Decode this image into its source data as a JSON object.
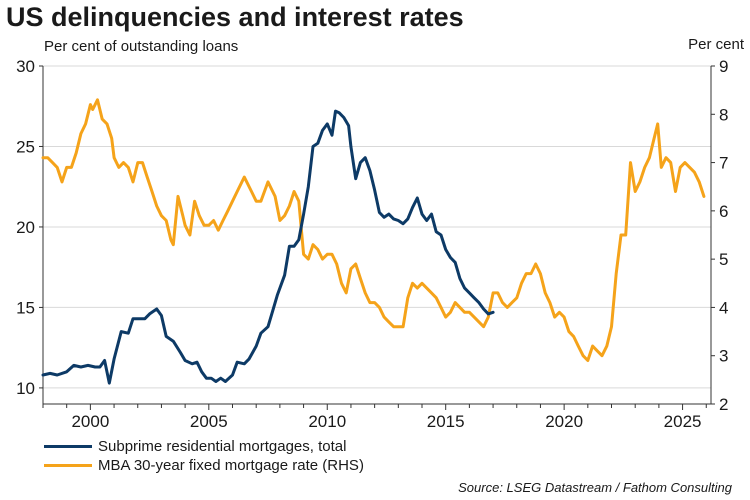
{
  "header": {
    "title": "US delinquencies and interest rates",
    "left_unit": "Per cent of outstanding loans",
    "right_unit": "Per cent"
  },
  "source": "Source: LSEG Datastream / Fathom Consulting",
  "colors": {
    "subprime": "#0d3a66",
    "mortgage_rate": "#f5a31a",
    "grid": "#d9d9d9",
    "axis": "#333333"
  },
  "chart_data": {
    "type": "line",
    "x_range": [
      1998,
      2026.2
    ],
    "x_ticks": [
      2000,
      2005,
      2010,
      2015,
      2020,
      2025
    ],
    "y_left": {
      "range": [
        9,
        30
      ],
      "ticks": [
        10,
        15,
        20,
        25,
        30
      ]
    },
    "y_right": {
      "range": [
        2,
        9
      ],
      "ticks": [
        2,
        3,
        4,
        5,
        6,
        7,
        8,
        9
      ]
    },
    "grid": true,
    "legend_position": "bottom-left",
    "series": [
      {
        "name": "Subprime residential mortgages, total",
        "axis": "left",
        "color": "#0d3a66",
        "points": [
          [
            1998.0,
            10.8
          ],
          [
            1998.3,
            10.9
          ],
          [
            1998.6,
            10.8
          ],
          [
            1999.0,
            11.0
          ],
          [
            1999.3,
            11.4
          ],
          [
            1999.6,
            11.3
          ],
          [
            1999.9,
            11.4
          ],
          [
            2000.2,
            11.3
          ],
          [
            2000.4,
            11.3
          ],
          [
            2000.6,
            11.7
          ],
          [
            2000.8,
            10.3
          ],
          [
            2001.0,
            11.8
          ],
          [
            2001.3,
            13.5
          ],
          [
            2001.6,
            13.4
          ],
          [
            2001.8,
            14.3
          ],
          [
            2002.1,
            14.3
          ],
          [
            2002.3,
            14.3
          ],
          [
            2002.5,
            14.6
          ],
          [
            2002.8,
            14.9
          ],
          [
            2003.0,
            14.5
          ],
          [
            2003.2,
            13.2
          ],
          [
            2003.5,
            12.9
          ],
          [
            2003.8,
            12.2
          ],
          [
            2004.0,
            11.7
          ],
          [
            2004.3,
            11.5
          ],
          [
            2004.5,
            11.6
          ],
          [
            2004.7,
            11.0
          ],
          [
            2004.9,
            10.6
          ],
          [
            2005.1,
            10.6
          ],
          [
            2005.3,
            10.4
          ],
          [
            2005.5,
            10.6
          ],
          [
            2005.7,
            10.4
          ],
          [
            2006.0,
            10.8
          ],
          [
            2006.2,
            11.6
          ],
          [
            2006.5,
            11.5
          ],
          [
            2006.7,
            11.8
          ],
          [
            2007.0,
            12.6
          ],
          [
            2007.2,
            13.4
          ],
          [
            2007.5,
            13.8
          ],
          [
            2007.7,
            14.8
          ],
          [
            2007.9,
            15.8
          ],
          [
            2008.2,
            17.0
          ],
          [
            2008.4,
            18.8
          ],
          [
            2008.6,
            18.8
          ],
          [
            2008.8,
            19.2
          ],
          [
            2009.0,
            20.8
          ],
          [
            2009.2,
            22.5
          ],
          [
            2009.4,
            25.0
          ],
          [
            2009.6,
            25.2
          ],
          [
            2009.8,
            26.0
          ],
          [
            2010.0,
            26.4
          ],
          [
            2010.2,
            25.7
          ],
          [
            2010.35,
            27.2
          ],
          [
            2010.5,
            27.1
          ],
          [
            2010.7,
            26.8
          ],
          [
            2010.9,
            26.3
          ],
          [
            2011.0,
            25.0
          ],
          [
            2011.2,
            23.0
          ],
          [
            2011.4,
            24.0
          ],
          [
            2011.6,
            24.3
          ],
          [
            2011.8,
            23.5
          ],
          [
            2012.0,
            22.3
          ],
          [
            2012.2,
            20.9
          ],
          [
            2012.4,
            20.6
          ],
          [
            2012.6,
            20.8
          ],
          [
            2012.8,
            20.5
          ],
          [
            2013.0,
            20.4
          ],
          [
            2013.2,
            20.2
          ],
          [
            2013.4,
            20.5
          ],
          [
            2013.6,
            21.2
          ],
          [
            2013.8,
            21.8
          ],
          [
            2014.0,
            20.8
          ],
          [
            2014.2,
            20.4
          ],
          [
            2014.4,
            20.8
          ],
          [
            2014.6,
            19.7
          ],
          [
            2014.8,
            19.5
          ],
          [
            2015.0,
            18.6
          ],
          [
            2015.2,
            18.1
          ],
          [
            2015.4,
            17.8
          ],
          [
            2015.6,
            16.8
          ],
          [
            2015.8,
            16.2
          ],
          [
            2016.0,
            15.9
          ],
          [
            2016.2,
            15.6
          ],
          [
            2016.4,
            15.3
          ],
          [
            2016.6,
            14.9
          ],
          [
            2016.8,
            14.6
          ],
          [
            2017.0,
            14.7
          ]
        ]
      },
      {
        "name": "MBA 30-year fixed mortgage rate (RHS)",
        "axis": "right",
        "color": "#f5a31a",
        "points": [
          [
            1998.0,
            7.1
          ],
          [
            1998.2,
            7.1
          ],
          [
            1998.4,
            7.0
          ],
          [
            1998.6,
            6.9
          ],
          [
            1998.8,
            6.6
          ],
          [
            1999.0,
            6.9
          ],
          [
            1999.2,
            6.9
          ],
          [
            1999.4,
            7.2
          ],
          [
            1999.6,
            7.6
          ],
          [
            1999.8,
            7.8
          ],
          [
            2000.0,
            8.2
          ],
          [
            2000.1,
            8.1
          ],
          [
            2000.3,
            8.3
          ],
          [
            2000.5,
            7.9
          ],
          [
            2000.7,
            7.8
          ],
          [
            2000.9,
            7.5
          ],
          [
            2001.0,
            7.1
          ],
          [
            2001.2,
            6.9
          ],
          [
            2001.4,
            7.0
          ],
          [
            2001.6,
            6.9
          ],
          [
            2001.8,
            6.6
          ],
          [
            2002.0,
            7.0
          ],
          [
            2002.2,
            7.0
          ],
          [
            2002.4,
            6.7
          ],
          [
            2002.6,
            6.4
          ],
          [
            2002.8,
            6.1
          ],
          [
            2003.0,
            5.9
          ],
          [
            2003.2,
            5.8
          ],
          [
            2003.4,
            5.4
          ],
          [
            2003.5,
            5.3
          ],
          [
            2003.7,
            6.3
          ],
          [
            2003.9,
            5.9
          ],
          [
            2004.0,
            5.7
          ],
          [
            2004.2,
            5.5
          ],
          [
            2004.4,
            6.2
          ],
          [
            2004.6,
            5.9
          ],
          [
            2004.8,
            5.7
          ],
          [
            2005.0,
            5.7
          ],
          [
            2005.2,
            5.8
          ],
          [
            2005.4,
            5.6
          ],
          [
            2005.6,
            5.8
          ],
          [
            2005.8,
            6.0
          ],
          [
            2006.0,
            6.2
          ],
          [
            2006.2,
            6.4
          ],
          [
            2006.5,
            6.7
          ],
          [
            2006.8,
            6.4
          ],
          [
            2007.0,
            6.2
          ],
          [
            2007.2,
            6.2
          ],
          [
            2007.5,
            6.6
          ],
          [
            2007.8,
            6.3
          ],
          [
            2008.0,
            5.8
          ],
          [
            2008.2,
            5.9
          ],
          [
            2008.4,
            6.1
          ],
          [
            2008.6,
            6.4
          ],
          [
            2008.8,
            6.2
          ],
          [
            2009.0,
            5.1
          ],
          [
            2009.2,
            5.0
          ],
          [
            2009.4,
            5.3
          ],
          [
            2009.6,
            5.2
          ],
          [
            2009.8,
            5.0
          ],
          [
            2010.0,
            5.1
          ],
          [
            2010.2,
            5.1
          ],
          [
            2010.4,
            4.9
          ],
          [
            2010.6,
            4.5
          ],
          [
            2010.8,
            4.3
          ],
          [
            2011.0,
            4.8
          ],
          [
            2011.2,
            4.9
          ],
          [
            2011.4,
            4.6
          ],
          [
            2011.6,
            4.3
          ],
          [
            2011.8,
            4.1
          ],
          [
            2012.0,
            4.1
          ],
          [
            2012.2,
            4.0
          ],
          [
            2012.4,
            3.8
          ],
          [
            2012.6,
            3.7
          ],
          [
            2012.8,
            3.6
          ],
          [
            2013.0,
            3.6
          ],
          [
            2013.2,
            3.6
          ],
          [
            2013.4,
            4.2
          ],
          [
            2013.6,
            4.5
          ],
          [
            2013.8,
            4.4
          ],
          [
            2014.0,
            4.5
          ],
          [
            2014.2,
            4.4
          ],
          [
            2014.4,
            4.3
          ],
          [
            2014.6,
            4.2
          ],
          [
            2014.8,
            4.0
          ],
          [
            2015.0,
            3.8
          ],
          [
            2015.2,
            3.9
          ],
          [
            2015.4,
            4.1
          ],
          [
            2015.6,
            4.0
          ],
          [
            2015.8,
            3.9
          ],
          [
            2016.0,
            3.9
          ],
          [
            2016.2,
            3.8
          ],
          [
            2016.4,
            3.7
          ],
          [
            2016.6,
            3.6
          ],
          [
            2016.8,
            3.8
          ],
          [
            2017.0,
            4.3
          ],
          [
            2017.2,
            4.3
          ],
          [
            2017.4,
            4.1
          ],
          [
            2017.6,
            4.0
          ],
          [
            2017.8,
            4.1
          ],
          [
            2018.0,
            4.2
          ],
          [
            2018.2,
            4.5
          ],
          [
            2018.4,
            4.7
          ],
          [
            2018.6,
            4.7
          ],
          [
            2018.8,
            4.9
          ],
          [
            2019.0,
            4.7
          ],
          [
            2019.2,
            4.3
          ],
          [
            2019.4,
            4.1
          ],
          [
            2019.6,
            3.8
          ],
          [
            2019.8,
            3.9
          ],
          [
            2020.0,
            3.8
          ],
          [
            2020.2,
            3.5
          ],
          [
            2020.4,
            3.4
          ],
          [
            2020.6,
            3.2
          ],
          [
            2020.8,
            3.0
          ],
          [
            2021.0,
            2.9
          ],
          [
            2021.2,
            3.2
          ],
          [
            2021.4,
            3.1
          ],
          [
            2021.6,
            3.0
          ],
          [
            2021.8,
            3.2
          ],
          [
            2022.0,
            3.6
          ],
          [
            2022.2,
            4.7
          ],
          [
            2022.4,
            5.5
          ],
          [
            2022.6,
            5.5
          ],
          [
            2022.8,
            7.0
          ],
          [
            2023.0,
            6.4
          ],
          [
            2023.2,
            6.6
          ],
          [
            2023.4,
            6.9
          ],
          [
            2023.6,
            7.1
          ],
          [
            2023.8,
            7.5
          ],
          [
            2023.95,
            7.8
          ],
          [
            2024.1,
            6.9
          ],
          [
            2024.3,
            7.1
          ],
          [
            2024.5,
            7.0
          ],
          [
            2024.7,
            6.4
          ],
          [
            2024.9,
            6.9
          ],
          [
            2025.1,
            7.0
          ],
          [
            2025.3,
            6.9
          ],
          [
            2025.5,
            6.8
          ],
          [
            2025.7,
            6.6
          ],
          [
            2025.9,
            6.3
          ]
        ]
      }
    ]
  }
}
